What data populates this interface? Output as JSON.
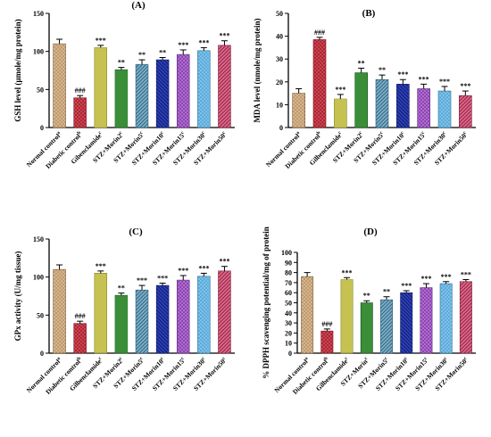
{
  "chart_data": [
    {
      "panel": "(A)",
      "type": "bar",
      "ylabel": "GSH level (µmole/mg protein)",
      "ylim": [
        0,
        150
      ],
      "yticks": [
        0,
        50,
        100,
        150
      ],
      "categories": [
        "Normal control",
        "Diabetic control",
        "Gibenclamide",
        "STZ+Morin2",
        "STZ+Morin5",
        "STZ+Morin10",
        "STZ+Morin15",
        "STZ+Morin30",
        "STZ+Morin50"
      ],
      "superscripts": [
        "a",
        "b",
        "c",
        "c",
        "c",
        "c",
        "c",
        "c",
        "c"
      ],
      "values": [
        110,
        39,
        105,
        76,
        83,
        89,
        96,
        101,
        108
      ],
      "errors": [
        6,
        3,
        3,
        3,
        6,
        3,
        6,
        4,
        6
      ],
      "significance": [
        "",
        "###",
        "***",
        "**",
        "**",
        "**",
        "***",
        "***",
        "***"
      ]
    },
    {
      "panel": "(B)",
      "type": "bar",
      "ylabel": "MDA level (nmole/mg protein)",
      "ylim": [
        0,
        50
      ],
      "yticks": [
        0,
        10,
        20,
        30,
        40,
        50
      ],
      "categories": [
        "Normal control",
        "Diabetic control",
        "Gilbenclamide",
        "STZ+Morin2",
        "STZ+Morin5",
        "STZ+Morin10",
        "STZ+Morin15",
        "STZ+Morin30",
        "STZ+Morin50"
      ],
      "superscripts": [
        "a",
        "b",
        "c",
        "c",
        "c",
        "c",
        "c",
        "c",
        "c"
      ],
      "values": [
        15,
        38.5,
        12.5,
        24,
        21,
        19,
        17,
        16,
        14
      ],
      "errors": [
        2,
        1,
        2,
        2,
        2,
        2,
        2,
        2,
        2
      ],
      "significance": [
        "",
        "###",
        "***",
        "**",
        "**",
        "***",
        "***",
        "***",
        "***"
      ]
    },
    {
      "panel": "(C)",
      "type": "bar",
      "ylabel": "GPx activity (U/mg tissue)",
      "ylim": [
        0,
        150
      ],
      "yticks": [
        0,
        50,
        100,
        150
      ],
      "categories": [
        "Normal control",
        "Diabetic control",
        "Gilbenclamide",
        "STZ+Morin2",
        "STZ+Morin5",
        "STZ+Morin10",
        "STZ+Morin15",
        "STZ+Morin30",
        "STZ+Morin50"
      ],
      "superscripts": [
        "a",
        "b",
        "c",
        "c",
        "c",
        "c",
        "c",
        "c",
        "c"
      ],
      "values": [
        110,
        39,
        105,
        76,
        83,
        89,
        96,
        101,
        108
      ],
      "errors": [
        6,
        3,
        3,
        3,
        6,
        3,
        6,
        4,
        6
      ],
      "significance": [
        "",
        "###",
        "***",
        "**",
        "***",
        "***",
        "***",
        "***",
        "***"
      ]
    },
    {
      "panel": "(D)",
      "type": "bar",
      "ylabel": "% DPPH scavenging potential/mg of protein",
      "ylim": [
        0,
        100
      ],
      "yticks": [
        0,
        10,
        20,
        30,
        40,
        50,
        60,
        70,
        80,
        90,
        100
      ],
      "categories": [
        "Normal control",
        "Diabetic control",
        "Gilbenclamide",
        "STZ+Morin",
        "STZ+Morin5",
        "STZ+Morin10",
        "STZ+Morin15",
        "STZ+Morin30",
        "STZ+Morin50"
      ],
      "superscripts": [
        "a",
        "b",
        "c",
        "c",
        "c",
        "c",
        "c",
        "c",
        "c"
      ],
      "values": [
        76,
        22,
        73,
        50,
        53,
        60,
        65,
        69,
        71
      ],
      "errors": [
        4,
        2,
        2,
        2,
        3,
        2,
        4,
        2,
        2
      ],
      "significance": [
        "",
        "###",
        "***",
        "**",
        "**",
        "***",
        "***",
        "***",
        "***"
      ]
    }
  ],
  "colors": {
    "bar_fills": [
      "#d8b48a",
      "#d3424f",
      "#e6e36a",
      "#4eb04a",
      "#7aaec8",
      "#2b3fb8",
      "#b469d8",
      "#79c2ee",
      "#e06588"
    ],
    "bar_strokes": [
      "#7a5a35",
      "#7a1520",
      "#8a8622",
      "#1d5c1d",
      "#2c5a73",
      "#0d1760",
      "#5b2a78",
      "#2a6f93",
      "#7c1d3b"
    ],
    "axis": "#000000"
  }
}
